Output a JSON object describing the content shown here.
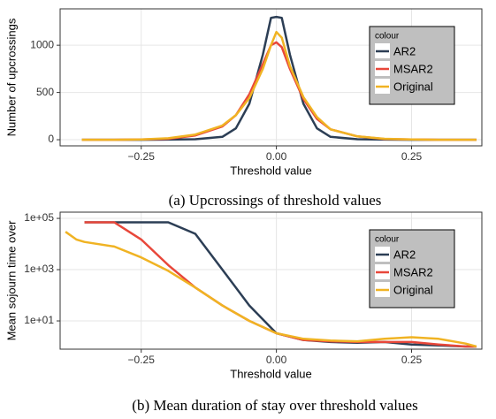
{
  "chart_data": [
    {
      "type": "line",
      "caption": "(a) Upcrossings of threshold values",
      "x_label": "Threshold value",
      "y_label": "Number of upcrossings",
      "x": [
        -0.36,
        -0.3,
        -0.25,
        -0.2,
        -0.15,
        -0.1,
        -0.075,
        -0.05,
        -0.025,
        -0.01,
        0,
        0.01,
        0.025,
        0.05,
        0.075,
        0.1,
        0.15,
        0.2,
        0.25,
        0.3,
        0.37
      ],
      "series": [
        {
          "name": "AR2",
          "color": "#2c3e55",
          "values": [
            0,
            0,
            0,
            1,
            5,
            30,
            120,
            380,
            900,
            1290,
            1300,
            1290,
            900,
            380,
            120,
            30,
            5,
            1,
            0,
            0,
            0
          ]
        },
        {
          "name": "MSAR2",
          "color": "#e8473a",
          "values": [
            0,
            0,
            2,
            10,
            45,
            140,
            260,
            480,
            800,
            1000,
            1030,
            980,
            750,
            430,
            220,
            110,
            35,
            8,
            2,
            0,
            0
          ]
        },
        {
          "name": "Original",
          "color": "#f0b323",
          "values": [
            0,
            0,
            3,
            15,
            55,
            150,
            260,
            440,
            750,
            1000,
            1140,
            1080,
            780,
            450,
            240,
            110,
            35,
            10,
            3,
            0,
            0
          ]
        }
      ],
      "xlim": [
        -0.4,
        0.38
      ],
      "xticks": [
        {
          "value": -0.25,
          "label": "−0.25"
        },
        {
          "value": 0,
          "label": "0.00"
        },
        {
          "value": 0.25,
          "label": "0.25"
        }
      ],
      "ylim": [
        -65,
        1385
      ],
      "yticks": [
        0,
        500,
        1000
      ],
      "log_y": false,
      "grid": true,
      "legend_title": "colour",
      "legend": "right"
    },
    {
      "type": "line",
      "caption": "(b) Mean duration of stay over threshold values",
      "x_label": "Threshold value",
      "y_label": "Mean sojourn time over",
      "x": [
        -0.39,
        -0.37,
        -0.355,
        -0.3,
        -0.25,
        -0.2,
        -0.15,
        -0.1,
        -0.05,
        0,
        0.05,
        0.1,
        0.15,
        0.2,
        0.25,
        0.3,
        0.35,
        0.37
      ],
      "series": [
        {
          "name": "AR2",
          "color": "#2c3e55",
          "values": [
            null,
            null,
            70000,
            70000,
            70000,
            70000,
            25000,
            1000,
            40,
            3.3,
            1.8,
            1.5,
            1.4,
            1.5,
            1.2,
            1.1,
            1,
            1
          ]
        },
        {
          "name": "MSAR2",
          "color": "#e8473a",
          "values": [
            null,
            null,
            70000,
            70000,
            15000,
            1500,
            200,
            40,
            10,
            3.3,
            1.8,
            1.6,
            1.5,
            1.5,
            1.5,
            1.2,
            1,
            1
          ]
        },
        {
          "name": "Original",
          "color": "#f0b323",
          "values": [
            30000,
            15000,
            12000,
            8000,
            3000,
            900,
            200,
            40,
            10,
            3.3,
            2,
            1.7,
            1.6,
            2,
            2.3,
            2,
            1.3,
            1
          ]
        }
      ],
      "xlim": [
        -0.4,
        0.38
      ],
      "xticks": [
        {
          "value": -0.25,
          "label": "−0.25"
        },
        {
          "value": 0,
          "label": "0.00"
        },
        {
          "value": 0.25,
          "label": "0.25"
        }
      ],
      "ylim": [
        0.79,
        175000
      ],
      "yticks": [
        {
          "value": 10,
          "label": "1e+01"
        },
        {
          "value": 1000,
          "label": "1e+03"
        },
        {
          "value": 100000,
          "label": "1e+05"
        }
      ],
      "log_y": true,
      "grid": true,
      "legend_title": "colour",
      "legend": "right"
    }
  ]
}
